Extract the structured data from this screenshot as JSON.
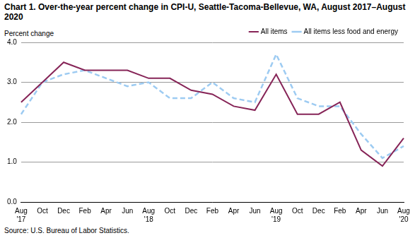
{
  "chart_data": {
    "type": "line",
    "title": "Chart 1. Over-the-year percent change in CPI-U, Seattle-Tacoma-Bellevue, WA, August 2017–August 2020",
    "ylabel": "Percent change",
    "source": "Source: U.S. Bureau of Labor Statistics.",
    "categories": [
      "Aug\n'17",
      "Oct",
      "Dec",
      "Feb",
      "Apr",
      "Jun",
      "Aug\n'18",
      "Oct",
      "Dec",
      "Feb",
      "Apr",
      "Jun",
      "Aug\n'19",
      "Oct",
      "Dec",
      "Feb",
      "Apr",
      "Jun",
      "Aug\n'20"
    ],
    "series": [
      {
        "name": "All items",
        "color": "#862457",
        "line_style": "solid",
        "values": [
          2.5,
          3.0,
          3.5,
          3.3,
          3.3,
          3.3,
          3.1,
          3.1,
          2.8,
          2.7,
          2.4,
          2.3,
          3.2,
          2.2,
          2.2,
          2.5,
          1.3,
          0.9,
          1.6
        ]
      },
      {
        "name": "All items less food and energy",
        "color": "#9dcbf2",
        "line_style": "dashed",
        "values": [
          2.2,
          3.0,
          3.2,
          3.3,
          3.1,
          2.9,
          3.0,
          2.6,
          2.6,
          3.0,
          2.6,
          2.5,
          3.7,
          2.6,
          2.4,
          2.4,
          1.7,
          1.1,
          1.4
        ]
      }
    ],
    "ylim": [
      0,
      4
    ],
    "yticks": [
      {
        "value": 0,
        "label": "0.0"
      },
      {
        "value": 1,
        "label": "1.0"
      },
      {
        "value": 2,
        "label": "2.0"
      },
      {
        "value": 3,
        "label": "3.0"
      },
      {
        "value": 4,
        "label": "4.0"
      }
    ],
    "grid": true,
    "legend": "top-right"
  }
}
